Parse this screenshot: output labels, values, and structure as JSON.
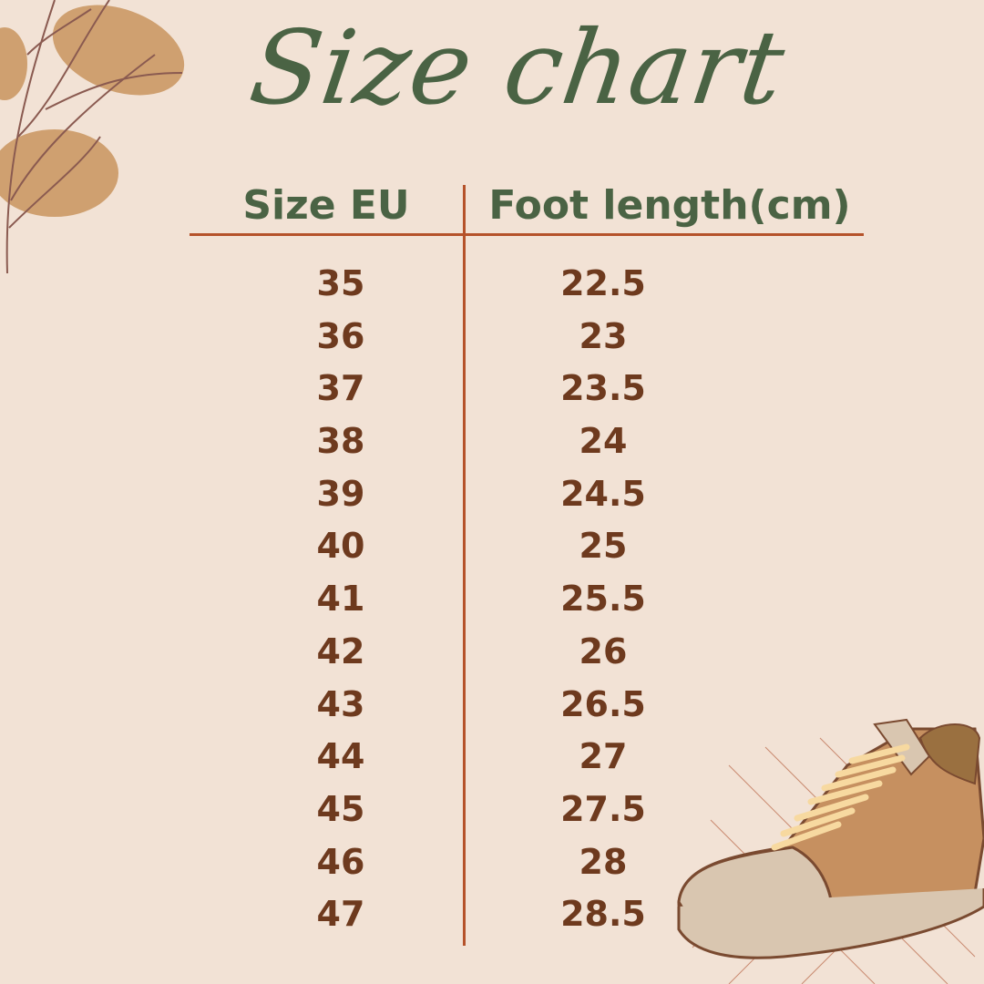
{
  "title": "Size chart",
  "headers": [
    "Size EU",
    "Foot length(cm)"
  ],
  "rows": [
    [
      "35",
      "22.5"
    ],
    [
      "36",
      "23"
    ],
    [
      "37",
      "23.5"
    ],
    [
      "38",
      "24"
    ],
    [
      "39",
      "24.5"
    ],
    [
      "40",
      "25"
    ],
    [
      "41",
      "25.5"
    ],
    [
      "42",
      "26"
    ],
    [
      "43",
      "26.5"
    ],
    [
      "44",
      "27"
    ],
    [
      "45",
      "27.5"
    ],
    [
      "46",
      "28"
    ],
    [
      "47",
      "28.5"
    ]
  ],
  "colors": {
    "background": "#F2E2D5",
    "heading": "#4A6344",
    "values": "#6E3A1E",
    "lines": "#B5522A"
  },
  "decorations": [
    "leaf-branch-icon",
    "sneaker-icon"
  ]
}
